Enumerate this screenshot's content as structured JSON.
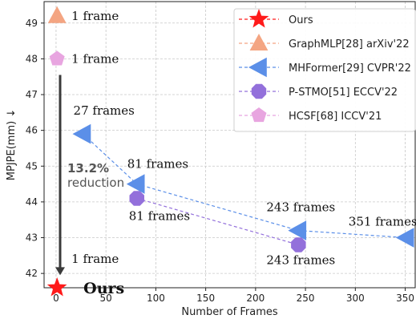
{
  "chart_data": {
    "type": "scatter",
    "xlabel": "Number of Frames",
    "ylabel": "MPJPE(mm) ↓",
    "xlim": [
      -12,
      360
    ],
    "ylim": [
      41.6,
      49.6
    ],
    "xticks": [
      0,
      50,
      100,
      150,
      200,
      250,
      300,
      350
    ],
    "yticks": [
      42,
      43,
      44,
      45,
      46,
      47,
      48,
      49
    ],
    "grid": true,
    "legend_position": "top-right",
    "series": [
      {
        "name": "Ours",
        "marker": "star",
        "color": "#ff1a1a",
        "x": [
          1
        ],
        "y": [
          41.6
        ]
      },
      {
        "name": "GraphMLP[28] arXiv'22",
        "marker": "triangle-up",
        "color": "#f4a582",
        "x": [
          1
        ],
        "y": [
          49.2
        ]
      },
      {
        "name": "MHFormer[29] CVPR'22",
        "marker": "triangle-left",
        "color": "#5b8fe8",
        "x": [
          27,
          81,
          243,
          351
        ],
        "y": [
          45.9,
          44.5,
          43.2,
          43.0
        ]
      },
      {
        "name": "P-STMO[51] ECCV'22",
        "marker": "octagon",
        "color": "#9370db",
        "x": [
          81,
          243
        ],
        "y": [
          44.1,
          42.8
        ]
      },
      {
        "name": "HCSF[68] ICCV'21",
        "marker": "pentagon",
        "color": "#e8a5e0",
        "x": [
          1
        ],
        "y": [
          48.0
        ]
      }
    ],
    "annotations": [
      {
        "text": "1 frame",
        "x": 1,
        "y": 49.2
      },
      {
        "text": "1 frame",
        "x": 1,
        "y": 48.0
      },
      {
        "text": "27 frames",
        "x": 27,
        "y": 45.9
      },
      {
        "text": "81 frames",
        "x": 81,
        "y": 44.5
      },
      {
        "text": "81 frames",
        "x": 81,
        "y": 44.1
      },
      {
        "text": "243 frames",
        "x": 243,
        "y": 43.2
      },
      {
        "text": "243 frames",
        "x": 243,
        "y": 42.8
      },
      {
        "text": "351 frames",
        "x": 351,
        "y": 43.0
      },
      {
        "text": "1 frame",
        "x": 1,
        "y": 42.3
      },
      {
        "text": "Ours",
        "x": 1,
        "y": 41.6
      }
    ],
    "reduction": {
      "percent": "13.2%",
      "label": "reduction"
    }
  }
}
